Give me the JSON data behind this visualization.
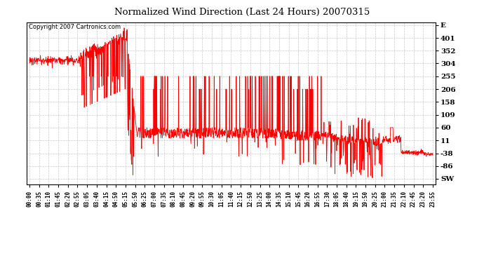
{
  "title": "Normalized Wind Direction (Last 24 Hours) 20070315",
  "copyright_text": "Copyright 2007 Cartronics.com",
  "line_color": "#FF0000",
  "background_color": "#FFFFFF",
  "grid_color": "#BBBBBB",
  "ytick_positions": [
    450,
    401,
    352,
    304,
    255,
    206,
    158,
    109,
    60,
    11,
    -38,
    -86,
    -135
  ],
  "ytick_labels": [
    "E",
    "401",
    "352",
    "304",
    "255",
    "206",
    "158",
    "109",
    "60",
    "11",
    "-38",
    "-86",
    "SW"
  ],
  "ylim": [
    -155,
    460
  ],
  "xtick_labels": [
    "00:00",
    "00:35",
    "01:10",
    "01:45",
    "02:20",
    "02:55",
    "03:05",
    "03:40",
    "04:15",
    "04:50",
    "05:15",
    "05:50",
    "06:25",
    "07:00",
    "07:35",
    "08:10",
    "08:45",
    "09:20",
    "09:55",
    "10:30",
    "11:05",
    "11:40",
    "12:15",
    "12:50",
    "13:25",
    "14:00",
    "14:35",
    "15:10",
    "15:45",
    "16:20",
    "16:55",
    "17:30",
    "18:05",
    "18:40",
    "19:15",
    "19:50",
    "20:25",
    "21:00",
    "21:35",
    "22:10",
    "22:45",
    "23:20",
    "23:55"
  ]
}
